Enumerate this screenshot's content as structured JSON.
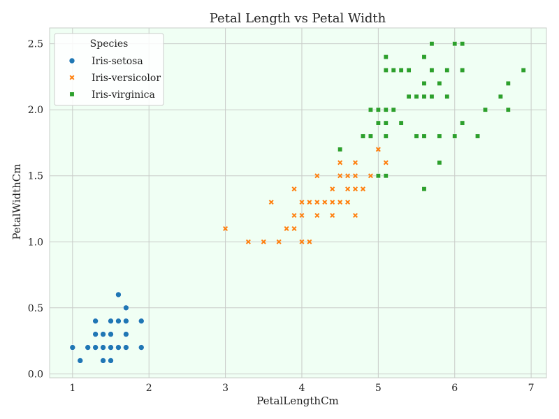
{
  "chart_data": {
    "type": "scatter",
    "title": "Petal Length vs Petal Width",
    "xlabel": "PetalLengthCm",
    "ylabel": "PetalWidthCm",
    "xlim": [
      0.7,
      7.2
    ],
    "ylim": [
      -0.03,
      2.62
    ],
    "xticks": [
      1,
      2,
      3,
      4,
      5,
      6,
      7
    ],
    "yticks": [
      0.0,
      0.5,
      1.0,
      1.5,
      2.0,
      2.5
    ],
    "xtick_labels": [
      "1",
      "2",
      "3",
      "4",
      "5",
      "6",
      "7"
    ],
    "ytick_labels": [
      "0.0",
      "0.5",
      "1.0",
      "1.5",
      "2.0",
      "2.5"
    ],
    "grid": true,
    "background": "#f0fff4",
    "legend": {
      "title": "Species",
      "placement": "top-left"
    },
    "series": [
      {
        "name": "Iris-setosa",
        "marker": "circle",
        "color": "#1f77b4",
        "points": [
          [
            1.0,
            0.2
          ],
          [
            1.1,
            0.1
          ],
          [
            1.2,
            0.2
          ],
          [
            1.3,
            0.2
          ],
          [
            1.3,
            0.3
          ],
          [
            1.3,
            0.4
          ],
          [
            1.4,
            0.1
          ],
          [
            1.4,
            0.2
          ],
          [
            1.4,
            0.3
          ],
          [
            1.5,
            0.1
          ],
          [
            1.5,
            0.2
          ],
          [
            1.5,
            0.3
          ],
          [
            1.5,
            0.4
          ],
          [
            1.6,
            0.2
          ],
          [
            1.6,
            0.4
          ],
          [
            1.6,
            0.6
          ],
          [
            1.7,
            0.2
          ],
          [
            1.7,
            0.3
          ],
          [
            1.7,
            0.4
          ],
          [
            1.7,
            0.5
          ],
          [
            1.9,
            0.2
          ],
          [
            1.9,
            0.4
          ]
        ]
      },
      {
        "name": "Iris-versicolor",
        "marker": "x",
        "color": "#ff7f0e",
        "points": [
          [
            3.0,
            1.1
          ],
          [
            3.3,
            1.0
          ],
          [
            3.5,
            1.0
          ],
          [
            3.6,
            1.3
          ],
          [
            3.7,
            1.0
          ],
          [
            3.8,
            1.1
          ],
          [
            3.9,
            1.1
          ],
          [
            3.9,
            1.2
          ],
          [
            3.9,
            1.4
          ],
          [
            4.0,
            1.0
          ],
          [
            4.0,
            1.2
          ],
          [
            4.0,
            1.3
          ],
          [
            4.1,
            1.0
          ],
          [
            4.1,
            1.3
          ],
          [
            4.2,
            1.2
          ],
          [
            4.2,
            1.3
          ],
          [
            4.2,
            1.5
          ],
          [
            4.3,
            1.3
          ],
          [
            4.4,
            1.2
          ],
          [
            4.4,
            1.3
          ],
          [
            4.4,
            1.4
          ],
          [
            4.5,
            1.3
          ],
          [
            4.5,
            1.5
          ],
          [
            4.5,
            1.6
          ],
          [
            4.6,
            1.3
          ],
          [
            4.6,
            1.4
          ],
          [
            4.6,
            1.5
          ],
          [
            4.7,
            1.2
          ],
          [
            4.7,
            1.4
          ],
          [
            4.7,
            1.5
          ],
          [
            4.7,
            1.6
          ],
          [
            4.8,
            1.4
          ],
          [
            4.9,
            1.5
          ],
          [
            5.0,
            1.7
          ],
          [
            5.1,
            1.6
          ]
        ]
      },
      {
        "name": "Iris-virginica",
        "marker": "square",
        "color": "#2ca02c",
        "points": [
          [
            4.5,
            1.7
          ],
          [
            4.8,
            1.8
          ],
          [
            4.9,
            1.8
          ],
          [
            4.9,
            2.0
          ],
          [
            5.0,
            1.5
          ],
          [
            5.0,
            1.9
          ],
          [
            5.0,
            2.0
          ],
          [
            5.1,
            1.5
          ],
          [
            5.1,
            1.8
          ],
          [
            5.1,
            1.9
          ],
          [
            5.1,
            2.0
          ],
          [
            5.1,
            2.3
          ],
          [
            5.1,
            2.4
          ],
          [
            5.2,
            2.0
          ],
          [
            5.2,
            2.3
          ],
          [
            5.3,
            1.9
          ],
          [
            5.3,
            2.3
          ],
          [
            5.4,
            2.1
          ],
          [
            5.4,
            2.3
          ],
          [
            5.5,
            1.8
          ],
          [
            5.5,
            2.1
          ],
          [
            5.6,
            1.4
          ],
          [
            5.6,
            1.8
          ],
          [
            5.6,
            2.1
          ],
          [
            5.6,
            2.2
          ],
          [
            5.6,
            2.4
          ],
          [
            5.7,
            2.1
          ],
          [
            5.7,
            2.3
          ],
          [
            5.7,
            2.5
          ],
          [
            5.8,
            1.6
          ],
          [
            5.8,
            1.8
          ],
          [
            5.8,
            2.2
          ],
          [
            5.9,
            2.1
          ],
          [
            5.9,
            2.3
          ],
          [
            6.0,
            1.8
          ],
          [
            6.0,
            2.5
          ],
          [
            6.1,
            1.9
          ],
          [
            6.1,
            2.3
          ],
          [
            6.1,
            2.5
          ],
          [
            6.3,
            1.8
          ],
          [
            6.4,
            2.0
          ],
          [
            6.6,
            2.1
          ],
          [
            6.7,
            2.0
          ],
          [
            6.7,
            2.2
          ],
          [
            6.9,
            2.3
          ]
        ]
      }
    ]
  }
}
